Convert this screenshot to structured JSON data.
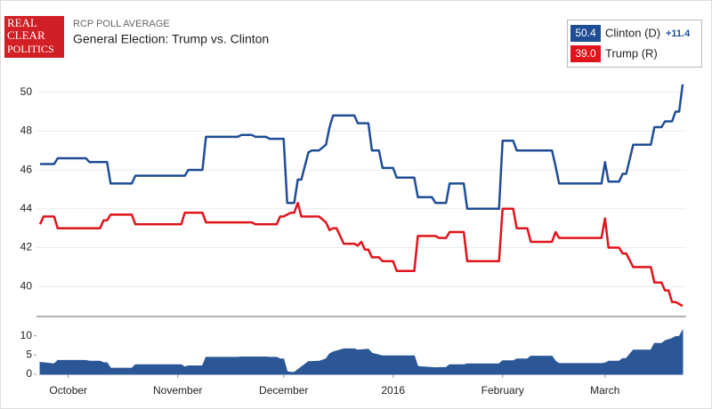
{
  "header": {
    "logo": [
      "REAL",
      "CLEAR",
      "POLITICS"
    ],
    "kicker": "RCP POLL AVERAGE",
    "title": "General Election: Trump vs. Clinton"
  },
  "chart_data": [
    {
      "type": "line",
      "ylim": [
        38.5,
        50.9
      ],
      "yticks": [
        40,
        42,
        44,
        46,
        48,
        50
      ],
      "xlim": [
        -9,
        175
      ],
      "grid": true,
      "spread": {
        "value": 11.4,
        "label": "+11.4"
      },
      "series": [
        {
          "name": "Clinton (D)",
          "color": "#1f4e96",
          "latest": {
            "value": 50.4,
            "label": "50.4"
          },
          "x": [
            -8,
            -4,
            -3,
            5,
            6,
            11,
            12,
            18,
            19,
            33,
            34,
            38,
            39,
            48,
            49,
            52,
            53,
            56,
            57,
            61,
            62,
            64,
            65,
            66,
            68,
            69,
            71,
            73,
            74,
            75,
            81,
            82,
            85,
            86,
            88,
            89,
            92,
            93,
            98,
            99,
            103,
            104,
            107,
            108,
            112,
            113,
            122,
            123,
            126,
            127,
            137,
            138,
            139,
            151,
            152,
            153,
            156,
            157,
            158,
            160,
            165,
            166,
            168,
            169,
            171,
            172,
            173,
            174
          ],
          "values": [
            46.3,
            46.3,
            46.6,
            46.6,
            46.4,
            46.4,
            45.3,
            45.3,
            45.7,
            45.7,
            46.0,
            46.0,
            47.7,
            47.7,
            47.8,
            47.8,
            47.7,
            47.7,
            47.6,
            47.6,
            44.3,
            44.3,
            45.5,
            45.5,
            46.9,
            47.0,
            47.0,
            47.3,
            48.2,
            48.8,
            48.8,
            48.4,
            48.4,
            47.0,
            47.0,
            46.1,
            46.1,
            45.6,
            45.6,
            44.6,
            44.6,
            44.3,
            44.3,
            45.3,
            45.3,
            44.0,
            44.0,
            47.5,
            47.5,
            47.0,
            47.0,
            46.2,
            45.3,
            45.3,
            46.4,
            45.4,
            45.4,
            45.8,
            45.8,
            47.3,
            47.3,
            48.2,
            48.2,
            48.5,
            48.5,
            49.0,
            49.0,
            50.4
          ]
        },
        {
          "name": "Trump (R)",
          "color": "#e0141b",
          "latest": {
            "value": 39.0,
            "label": "39.0"
          },
          "x": [
            -8,
            -7,
            -4,
            -3,
            9,
            10,
            11,
            12,
            18,
            19,
            32,
            33,
            38,
            39,
            52,
            53,
            59,
            60,
            61,
            63,
            64,
            65,
            66,
            71,
            73,
            74,
            75,
            76,
            78,
            81,
            82,
            83,
            84,
            85,
            86,
            88,
            89,
            92,
            93,
            98,
            99,
            104,
            105,
            107,
            108,
            112,
            113,
            122,
            123,
            126,
            127,
            130,
            131,
            137,
            138,
            139,
            151,
            152,
            153,
            156,
            157,
            158,
            160,
            165,
            166,
            168,
            169,
            170,
            171,
            172,
            174
          ],
          "values": [
            43.2,
            43.6,
            43.6,
            43.0,
            43.0,
            43.4,
            43.4,
            43.7,
            43.7,
            43.2,
            43.2,
            43.8,
            43.8,
            43.3,
            43.3,
            43.2,
            43.2,
            43.6,
            43.6,
            43.8,
            43.8,
            44.3,
            43.6,
            43.6,
            43.3,
            42.9,
            43.0,
            43.0,
            42.2,
            42.2,
            42.1,
            42.3,
            41.9,
            41.9,
            41.5,
            41.5,
            41.3,
            41.3,
            40.8,
            40.8,
            42.6,
            42.6,
            42.5,
            42.5,
            42.8,
            42.8,
            41.3,
            41.3,
            44.0,
            44.0,
            43.0,
            43.0,
            42.3,
            42.3,
            42.8,
            42.5,
            42.5,
            43.5,
            42.0,
            42.0,
            41.7,
            41.7,
            41.0,
            41.0,
            40.2,
            40.2,
            39.8,
            39.8,
            39.2,
            39.2,
            39.0
          ]
        }
      ]
    },
    {
      "type": "area",
      "ylim": [
        0,
        12
      ],
      "yticks": [
        0,
        5,
        10
      ],
      "xlim": [
        -9,
        175
      ],
      "color": "#2b5797",
      "xticks": [
        {
          "value": 0,
          "label": "October"
        },
        {
          "value": 31,
          "label": "November"
        },
        {
          "value": 61,
          "label": "December"
        },
        {
          "value": 92,
          "label": "2016"
        },
        {
          "value": 123,
          "label": "February"
        },
        {
          "value": 152,
          "label": "March"
        }
      ],
      "x": [
        -8,
        -4,
        -3,
        5,
        6,
        9,
        10,
        11,
        12,
        18,
        19,
        32,
        33,
        34,
        38,
        39,
        48,
        49,
        52,
        56,
        57,
        59,
        60,
        61,
        62,
        63,
        64,
        65,
        66,
        68,
        71,
        73,
        74,
        75,
        78,
        81,
        82,
        85,
        86,
        89,
        92,
        93,
        98,
        99,
        104,
        107,
        108,
        112,
        113,
        122,
        123,
        126,
        127,
        130,
        131,
        137,
        138,
        139,
        151,
        152,
        153,
        156,
        157,
        158,
        160,
        165,
        166,
        168,
        169,
        171,
        172,
        173,
        174
      ],
      "values": [
        3.1,
        2.7,
        3.6,
        3.6,
        3.4,
        3.4,
        3.0,
        3.0,
        1.6,
        1.6,
        2.5,
        2.5,
        1.9,
        2.2,
        2.2,
        4.4,
        4.4,
        4.5,
        4.5,
        4.5,
        4.4,
        4.4,
        4.0,
        4.0,
        0.7,
        0.5,
        0.5,
        1.2,
        1.9,
        3.3,
        3.4,
        4.0,
        5.3,
        5.8,
        6.6,
        6.6,
        6.3,
        6.5,
        5.5,
        4.8,
        4.8,
        4.8,
        4.8,
        2.0,
        1.7,
        1.8,
        2.5,
        2.5,
        2.7,
        2.7,
        3.5,
        3.5,
        4.0,
        4.0,
        4.7,
        4.7,
        3.4,
        2.8,
        2.8,
        2.9,
        3.4,
        3.4,
        4.1,
        4.1,
        6.3,
        6.3,
        8.0,
        8.0,
        8.7,
        9.3,
        9.8,
        9.8,
        11.4
      ]
    }
  ]
}
